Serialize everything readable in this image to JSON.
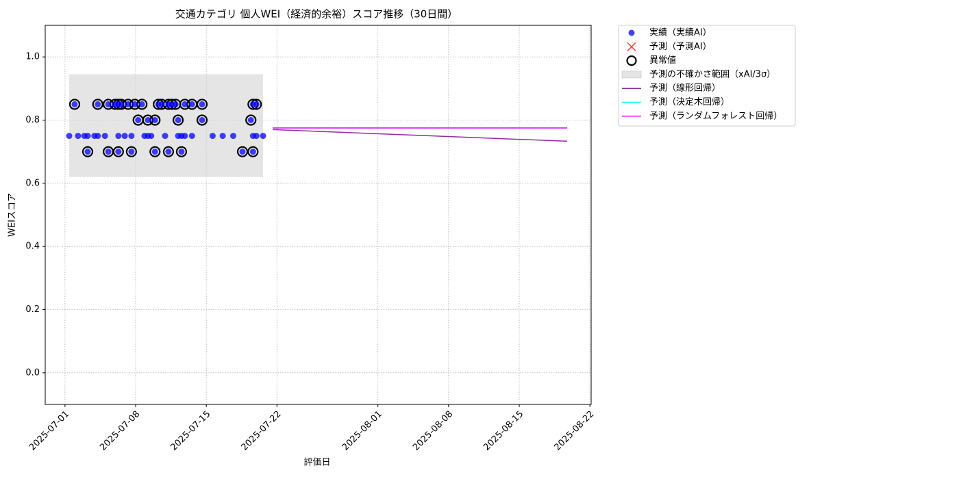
{
  "chart_data": {
    "type": "scatter",
    "title": "交通カテゴリ 個人WEI（経済的余裕）スコア推移（30日間）",
    "xlabel": "評価日",
    "ylabel": "WEIスコア",
    "xlim": [
      "2025-06-29T01:00",
      "2025-08-22T03:00"
    ],
    "xticks": [
      "2025-07-01",
      "2025-07-08",
      "2025-07-15",
      "2025-07-22",
      "2025-08-01",
      "2025-08-08",
      "2025-08-15",
      "2025-08-22"
    ],
    "ylim": [
      -0.1,
      1.1
    ],
    "yticks": [
      {
        "value": 0,
        "label": "0.0"
      },
      0.2,
      0.4,
      0.6,
      0.8,
      {
        "value": 1,
        "label": "1.0"
      }
    ],
    "grid": true,
    "legend": "outside upper right",
    "series": [
      {
        "name": "実績（実績AI）",
        "kind": "dot",
        "color": "#0000ff",
        "x": [
          "2025-07-01T10:00",
          "2025-07-01T23:00",
          "2025-07-02T07:00",
          "2025-07-02T22:00",
          "2025-07-03T06:00",
          "2025-07-03T06:00",
          "2025-07-03T22:00",
          "2025-07-04T06:00",
          "2025-07-04T06:00",
          "2025-07-04T23:00",
          "2025-07-05T07:00",
          "2025-07-05T07:00",
          "2025-07-05T23:00",
          "2025-07-06T07:00",
          "2025-07-06T07:00",
          "2025-07-06T07:00",
          "2025-07-06T14:00",
          "2025-07-06T22:00",
          "2025-07-07T06:00",
          "2025-07-07T14:00",
          "2025-07-07T14:00",
          "2025-07-07T22:00",
          "2025-07-08T06:00",
          "2025-07-08T15:00",
          "2025-07-08T21:00",
          "2025-07-09T05:00",
          "2025-07-09T05:00",
          "2025-07-09T13:00",
          "2025-07-09T22:00",
          "2025-07-09T22:00",
          "2025-07-10T06:00",
          "2025-07-10T14:00",
          "2025-07-10T22:00",
          "2025-07-11T06:00",
          "2025-07-11T06:00",
          "2025-07-11T14:00",
          "2025-07-11T23:00",
          "2025-07-12T05:00",
          "2025-07-12T05:00",
          "2025-07-12T13:00",
          "2025-07-12T13:00",
          "2025-07-12T21:00",
          "2025-07-12T21:00",
          "2025-07-13T14:00",
          "2025-07-13T14:00",
          "2025-07-14T14:00",
          "2025-07-14T14:00",
          "2025-07-15T15:00",
          "2025-07-16T15:00",
          "2025-07-17T16:00",
          "2025-07-18T14:00",
          "2025-07-19T10:00",
          "2025-07-19T15:00",
          "2025-07-19T15:00",
          "2025-07-19T15:00",
          "2025-07-19T23:00",
          "2025-07-19T23:00",
          "2025-07-20T15:00"
        ],
        "values": [
          0.75,
          0.85,
          0.75,
          0.75,
          0.75,
          0.7,
          0.75,
          0.75,
          0.85,
          0.75,
          0.85,
          0.7,
          0.85,
          0.75,
          0.85,
          0.7,
          0.85,
          0.75,
          0.85,
          0.75,
          0.7,
          0.85,
          0.8,
          0.85,
          0.75,
          0.75,
          0.8,
          0.75,
          0.7,
          0.8,
          0.85,
          0.85,
          0.75,
          0.85,
          0.7,
          0.85,
          0.85,
          0.75,
          0.8,
          0.75,
          0.7,
          0.75,
          0.85,
          0.75,
          0.85,
          0.85,
          0.8,
          0.75,
          0.75,
          0.75,
          0.7,
          0.8,
          0.75,
          0.85,
          0.7,
          0.75,
          0.85,
          0.75
        ]
      },
      {
        "name": "予測（予測AI）",
        "kind": "cross",
        "color": "#ff0000",
        "x": [],
        "values": []
      },
      {
        "name": "異常値",
        "kind": "ring",
        "color": "#000000",
        "x": [
          "2025-07-01T23:00",
          "2025-07-03T06:00",
          "2025-07-04T06:00",
          "2025-07-05T07:00",
          "2025-07-05T07:00",
          "2025-07-05T23:00",
          "2025-07-06T07:00",
          "2025-07-06T07:00",
          "2025-07-06T14:00",
          "2025-07-07T06:00",
          "2025-07-07T14:00",
          "2025-07-07T22:00",
          "2025-07-08T06:00",
          "2025-07-08T15:00",
          "2025-07-09T05:00",
          "2025-07-09T22:00",
          "2025-07-09T22:00",
          "2025-07-10T06:00",
          "2025-07-10T14:00",
          "2025-07-11T06:00",
          "2025-07-11T06:00",
          "2025-07-11T14:00",
          "2025-07-11T23:00",
          "2025-07-12T05:00",
          "2025-07-12T13:00",
          "2025-07-12T21:00",
          "2025-07-13T14:00",
          "2025-07-14T14:00",
          "2025-07-14T14:00",
          "2025-07-18T14:00",
          "2025-07-19T10:00",
          "2025-07-19T15:00",
          "2025-07-19T15:00",
          "2025-07-19T23:00"
        ],
        "values": [
          0.85,
          0.7,
          0.85,
          0.85,
          0.7,
          0.85,
          0.85,
          0.7,
          0.85,
          0.85,
          0.7,
          0.85,
          0.8,
          0.85,
          0.8,
          0.7,
          0.8,
          0.85,
          0.85,
          0.85,
          0.7,
          0.85,
          0.85,
          0.8,
          0.7,
          0.85,
          0.85,
          0.85,
          0.8,
          0.7,
          0.8,
          0.85,
          0.7,
          0.85
        ]
      },
      {
        "name": "予測の不確かさ範囲（xAI/3σ）",
        "kind": "band",
        "color": "#d3d3d3",
        "x": [
          "2025-07-01T10:00",
          "2025-07-20T15:00"
        ],
        "lower": [
          0.62,
          0.62
        ],
        "upper": [
          0.945,
          0.945
        ]
      },
      {
        "name": "予測（線形回帰）",
        "kind": "line",
        "color": "#8e2c9e",
        "x": [
          "2025-07-21T14:00",
          "2025-08-19T18:00"
        ],
        "values": [
          0.77,
          0.733
        ]
      },
      {
        "name": "予測（決定木回帰）",
        "kind": "line",
        "color": "#00ffff",
        "x": [
          "2025-07-21T14:00",
          "2025-08-19T18:00"
        ],
        "values": [
          0.775,
          0.775
        ]
      },
      {
        "name": "予測（ランダムフォレスト回帰）",
        "kind": "line",
        "color": "#ff00ff",
        "x": [
          "2025-07-21T14:00",
          "2025-08-19T18:00"
        ],
        "values": [
          0.775,
          0.775
        ]
      }
    ]
  }
}
